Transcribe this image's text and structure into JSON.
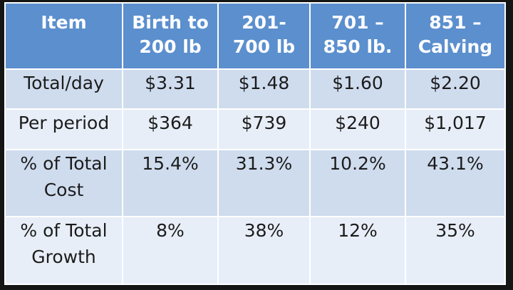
{
  "header": {
    "col0": [
      "Item"
    ],
    "col1": [
      "Birth to",
      "200 lb"
    ],
    "col2": [
      "201-",
      "700 lb"
    ],
    "col3": [
      "701 –",
      "850 lb."
    ],
    "col4": [
      "851 –",
      "Calving"
    ]
  },
  "rows": [
    {
      "label": [
        "Total/day"
      ],
      "values": [
        "$3.31",
        "$1.48",
        "$1.60",
        "$2.20"
      ]
    },
    {
      "label": [
        "Per period"
      ],
      "values": [
        "$364",
        "$739",
        "$240",
        "$1,017"
      ]
    },
    {
      "label": [
        "% of Total",
        "Cost"
      ],
      "values": [
        "15.4%",
        "31.3%",
        "10.2%",
        "43.1%"
      ]
    },
    {
      "label": [
        "% of Total",
        "Growth"
      ],
      "values": [
        "8%",
        "38%",
        "12%",
        "35%"
      ]
    }
  ],
  "colors": {
    "header_bg": "#5b8fce",
    "row_dark_bg": "#cfdcee",
    "row_light_bg": "#e8eef8",
    "border": "#ffffff"
  }
}
